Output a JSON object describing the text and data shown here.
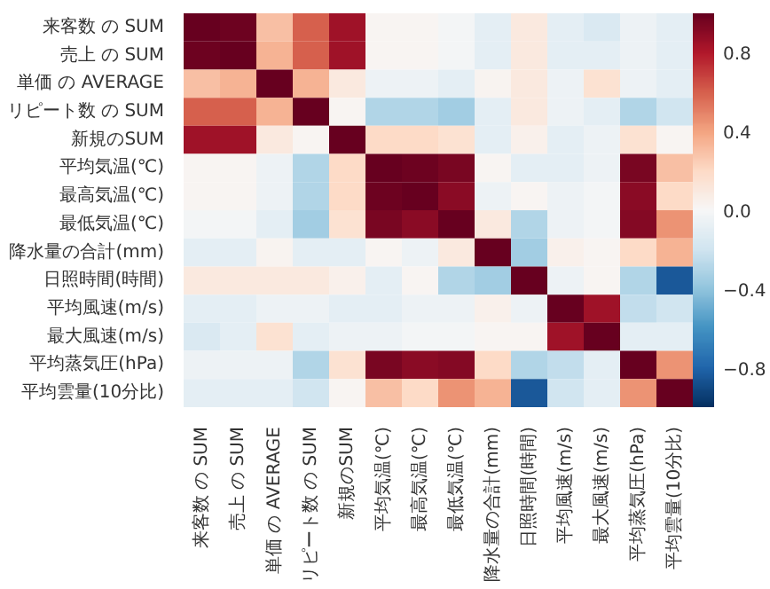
{
  "chart_data": {
    "type": "heatmap",
    "categories": [
      "来客数 の SUM",
      "売上 の SUM",
      "単価 の AVERAGE",
      "リピート数 の SUM",
      "新規のSUM",
      "平均気温(℃)",
      "最高気温(℃)",
      "最低気温(℃)",
      "降水量の合計(mm)",
      "日照時間(時間)",
      "平均風速(m/s)",
      "最大風速(m/s)",
      "平均蒸気圧(hPa)",
      "平均雲量(10分比)"
    ],
    "y_categories": [
      "来客数 の SUM",
      "売上 の SUM",
      "単価 の AVERAGE",
      "リピート数 の SUM",
      "新規のSUM",
      "平均気温(℃)",
      "最高気温(℃)",
      "最低気温(℃)",
      "降水量の合計(mm)",
      "日照時間(時間)",
      "平均風速(m/s)",
      "最大風速(m/s)",
      "平均蒸気圧(hPa)",
      "平均雲量(10分比)"
    ],
    "cells": [
      [
        1,
        0.98,
        0.3,
        0.6,
        0.85,
        0.02,
        0.02,
        -0.02,
        -0.1,
        0.1,
        -0.1,
        -0.15,
        -0.05,
        -0.1
      ],
      [
        0.98,
        1,
        0.35,
        0.6,
        0.85,
        0.02,
        0.02,
        -0.02,
        -0.1,
        0.1,
        -0.1,
        -0.1,
        -0.05,
        -0.1
      ],
      [
        0.3,
        0.35,
        1,
        0.35,
        0.1,
        -0.05,
        -0.05,
        -0.1,
        0.03,
        0.1,
        -0.05,
        0.15,
        -0.05,
        -0.1
      ],
      [
        0.6,
        0.6,
        0.35,
        1,
        0.02,
        -0.3,
        -0.3,
        -0.35,
        -0.1,
        0.1,
        -0.05,
        -0.1,
        -0.3,
        -0.2
      ],
      [
        0.85,
        0.85,
        0.1,
        0.02,
        1,
        0.2,
        0.2,
        0.15,
        -0.1,
        0.05,
        -0.1,
        -0.05,
        0.15,
        0.02
      ],
      [
        0.02,
        0.02,
        -0.05,
        -0.3,
        0.2,
        1,
        0.98,
        0.95,
        0.02,
        -0.1,
        -0.1,
        -0.05,
        0.95,
        0.3
      ],
      [
        0.02,
        0.02,
        -0.05,
        -0.3,
        0.2,
        0.98,
        1,
        0.9,
        -0.05,
        0.02,
        -0.05,
        -0.02,
        0.9,
        0.2
      ],
      [
        -0.02,
        -0.02,
        -0.1,
        -0.35,
        0.15,
        0.95,
        0.9,
        1,
        0.1,
        -0.3,
        -0.05,
        -0.02,
        0.92,
        0.45
      ],
      [
        -0.1,
        -0.1,
        0.03,
        -0.1,
        -0.1,
        0.02,
        -0.05,
        0.1,
        1,
        -0.35,
        0.05,
        0.02,
        0.2,
        0.35
      ],
      [
        0.1,
        0.1,
        0.1,
        0.1,
        0.05,
        -0.1,
        0.02,
        -0.3,
        -0.35,
        1,
        -0.05,
        0.02,
        -0.3,
        -0.85
      ],
      [
        -0.1,
        -0.1,
        -0.05,
        -0.05,
        -0.1,
        -0.1,
        -0.05,
        -0.05,
        0.05,
        -0.05,
        1,
        0.85,
        -0.25,
        -0.2
      ],
      [
        -0.15,
        -0.1,
        0.15,
        -0.1,
        -0.05,
        -0.05,
        -0.02,
        -0.02,
        0.02,
        0.02,
        0.85,
        1,
        -0.1,
        -0.1
      ],
      [
        -0.05,
        -0.05,
        -0.05,
        -0.3,
        0.15,
        0.95,
        0.9,
        0.92,
        0.2,
        -0.3,
        -0.25,
        -0.1,
        1,
        0.45
      ],
      [
        -0.1,
        -0.1,
        -0.1,
        -0.2,
        0.02,
        0.3,
        0.2,
        0.45,
        0.35,
        -0.85,
        -0.2,
        -0.1,
        0.45,
        1
      ]
    ],
    "clim": [
      -1,
      1
    ],
    "cticks": [
      {
        "value": -0.8,
        "label": "−0.8"
      },
      {
        "value": -0.4,
        "label": "−0.4"
      },
      {
        "value": 0,
        "label": "0.0"
      },
      0.4,
      0.8
    ]
  }
}
